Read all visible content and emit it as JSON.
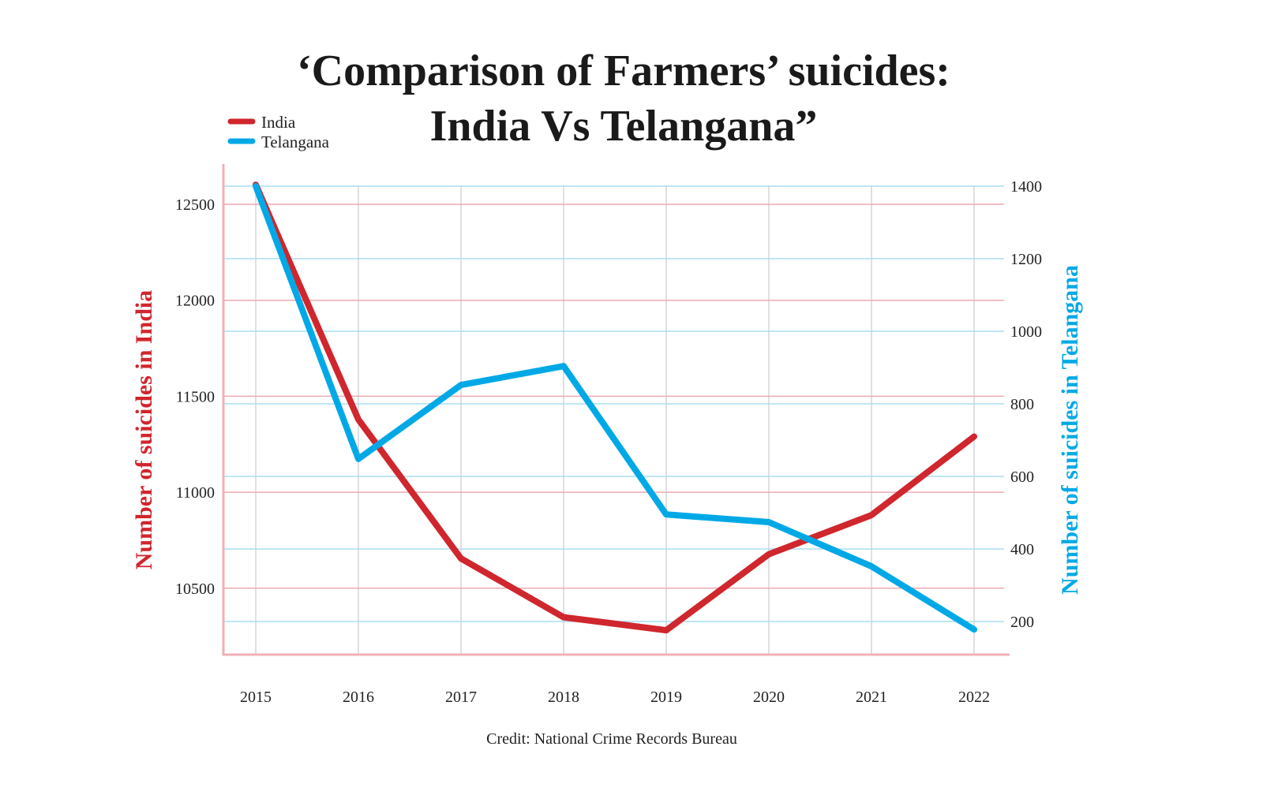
{
  "chart_data": {
    "type": "line",
    "title_line1": "‘Comparison of Farmers’ suicides:",
    "title_line2": "India Vs Telangana”",
    "credit": "Credit: National Crime Records Bureau",
    "x": [
      "2015",
      "2016",
      "2017",
      "2018",
      "2019",
      "2020",
      "2021",
      "2022"
    ],
    "y_left": {
      "label": "Number of suicides in India",
      "ticks": [
        10500,
        11000,
        11500,
        12000,
        12500
      ],
      "tick_labels": [
        "10500",
        "11000",
        "11500",
        "12000",
        "12500"
      ],
      "color": "#d0262d"
    },
    "y_right": {
      "label": "Number of suicides in Telangana",
      "ticks": [
        200,
        400,
        600,
        800,
        1000,
        1200,
        1400
      ],
      "tick_labels": [
        "200",
        "400",
        "600",
        "800",
        "1000",
        "1200",
        "1400"
      ],
      "color": "#00a9e6"
    },
    "series": [
      {
        "name": "India",
        "axis": "left",
        "color": "#d0262d",
        "values": [
          12602,
          11379,
          10655,
          10349,
          10281,
          10677,
          10881,
          11290
        ]
      },
      {
        "name": "Telangana",
        "axis": "right",
        "color": "#00a9e6",
        "values": [
          1400,
          648,
          852,
          904,
          495,
          474,
          352,
          178
        ]
      }
    ],
    "grid": true,
    "legend_position": "top-left"
  }
}
